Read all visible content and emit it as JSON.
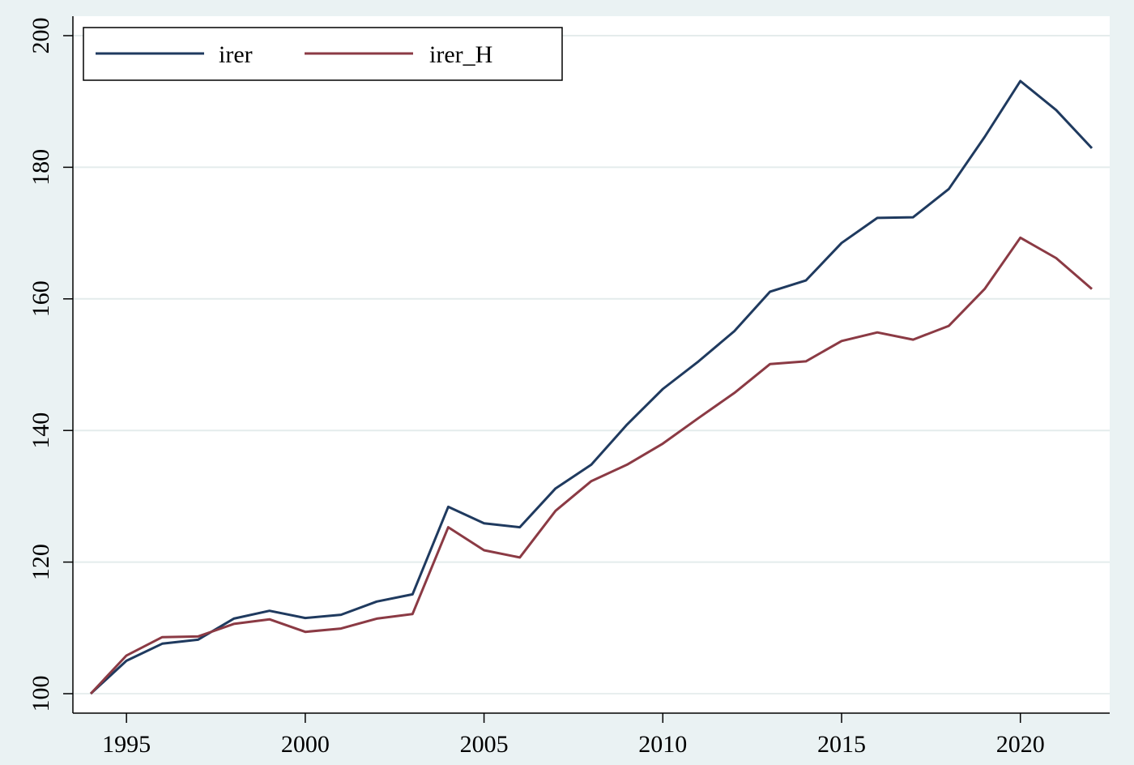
{
  "chart_data": {
    "type": "line",
    "title": "",
    "xlabel": "",
    "ylabel": "",
    "xlim": [
      1994,
      2022
    ],
    "ylim": [
      100,
      200
    ],
    "x_ticks": [
      1995,
      2000,
      2005,
      2010,
      2015,
      2020
    ],
    "y_ticks": [
      100,
      120,
      140,
      160,
      180,
      200
    ],
    "grid": "horizontal",
    "legend_position": "top-left",
    "x": [
      1994,
      1995,
      1996,
      1997,
      1998,
      1999,
      2000,
      2001,
      2002,
      2003,
      2004,
      2005,
      2006,
      2007,
      2008,
      2009,
      2010,
      2011,
      2012,
      2013,
      2014,
      2015,
      2016,
      2017,
      2018,
      2019,
      2020,
      2021,
      2022
    ],
    "series": [
      {
        "name": "irer",
        "color": "#1f3a5f",
        "values": [
          100.0,
          105.0,
          107.6,
          108.2,
          111.4,
          112.6,
          111.5,
          112.0,
          114.0,
          115.1,
          128.4,
          125.9,
          125.3,
          131.2,
          134.8,
          140.9,
          146.3,
          150.5,
          155.1,
          161.1,
          162.8,
          168.5,
          172.3,
          172.4,
          176.7,
          184.6,
          193.1,
          188.7,
          182.9
        ]
      },
      {
        "name": "irer_H",
        "color": "#8b3a44",
        "values": [
          100.0,
          105.8,
          108.6,
          108.7,
          110.6,
          111.3,
          109.4,
          109.9,
          111.4,
          112.1,
          125.3,
          121.8,
          120.7,
          127.8,
          132.3,
          134.8,
          138.0,
          141.9,
          145.7,
          150.1,
          150.5,
          153.6,
          154.9,
          153.8,
          155.9,
          161.5,
          169.3,
          166.2,
          161.5
        ]
      }
    ]
  }
}
